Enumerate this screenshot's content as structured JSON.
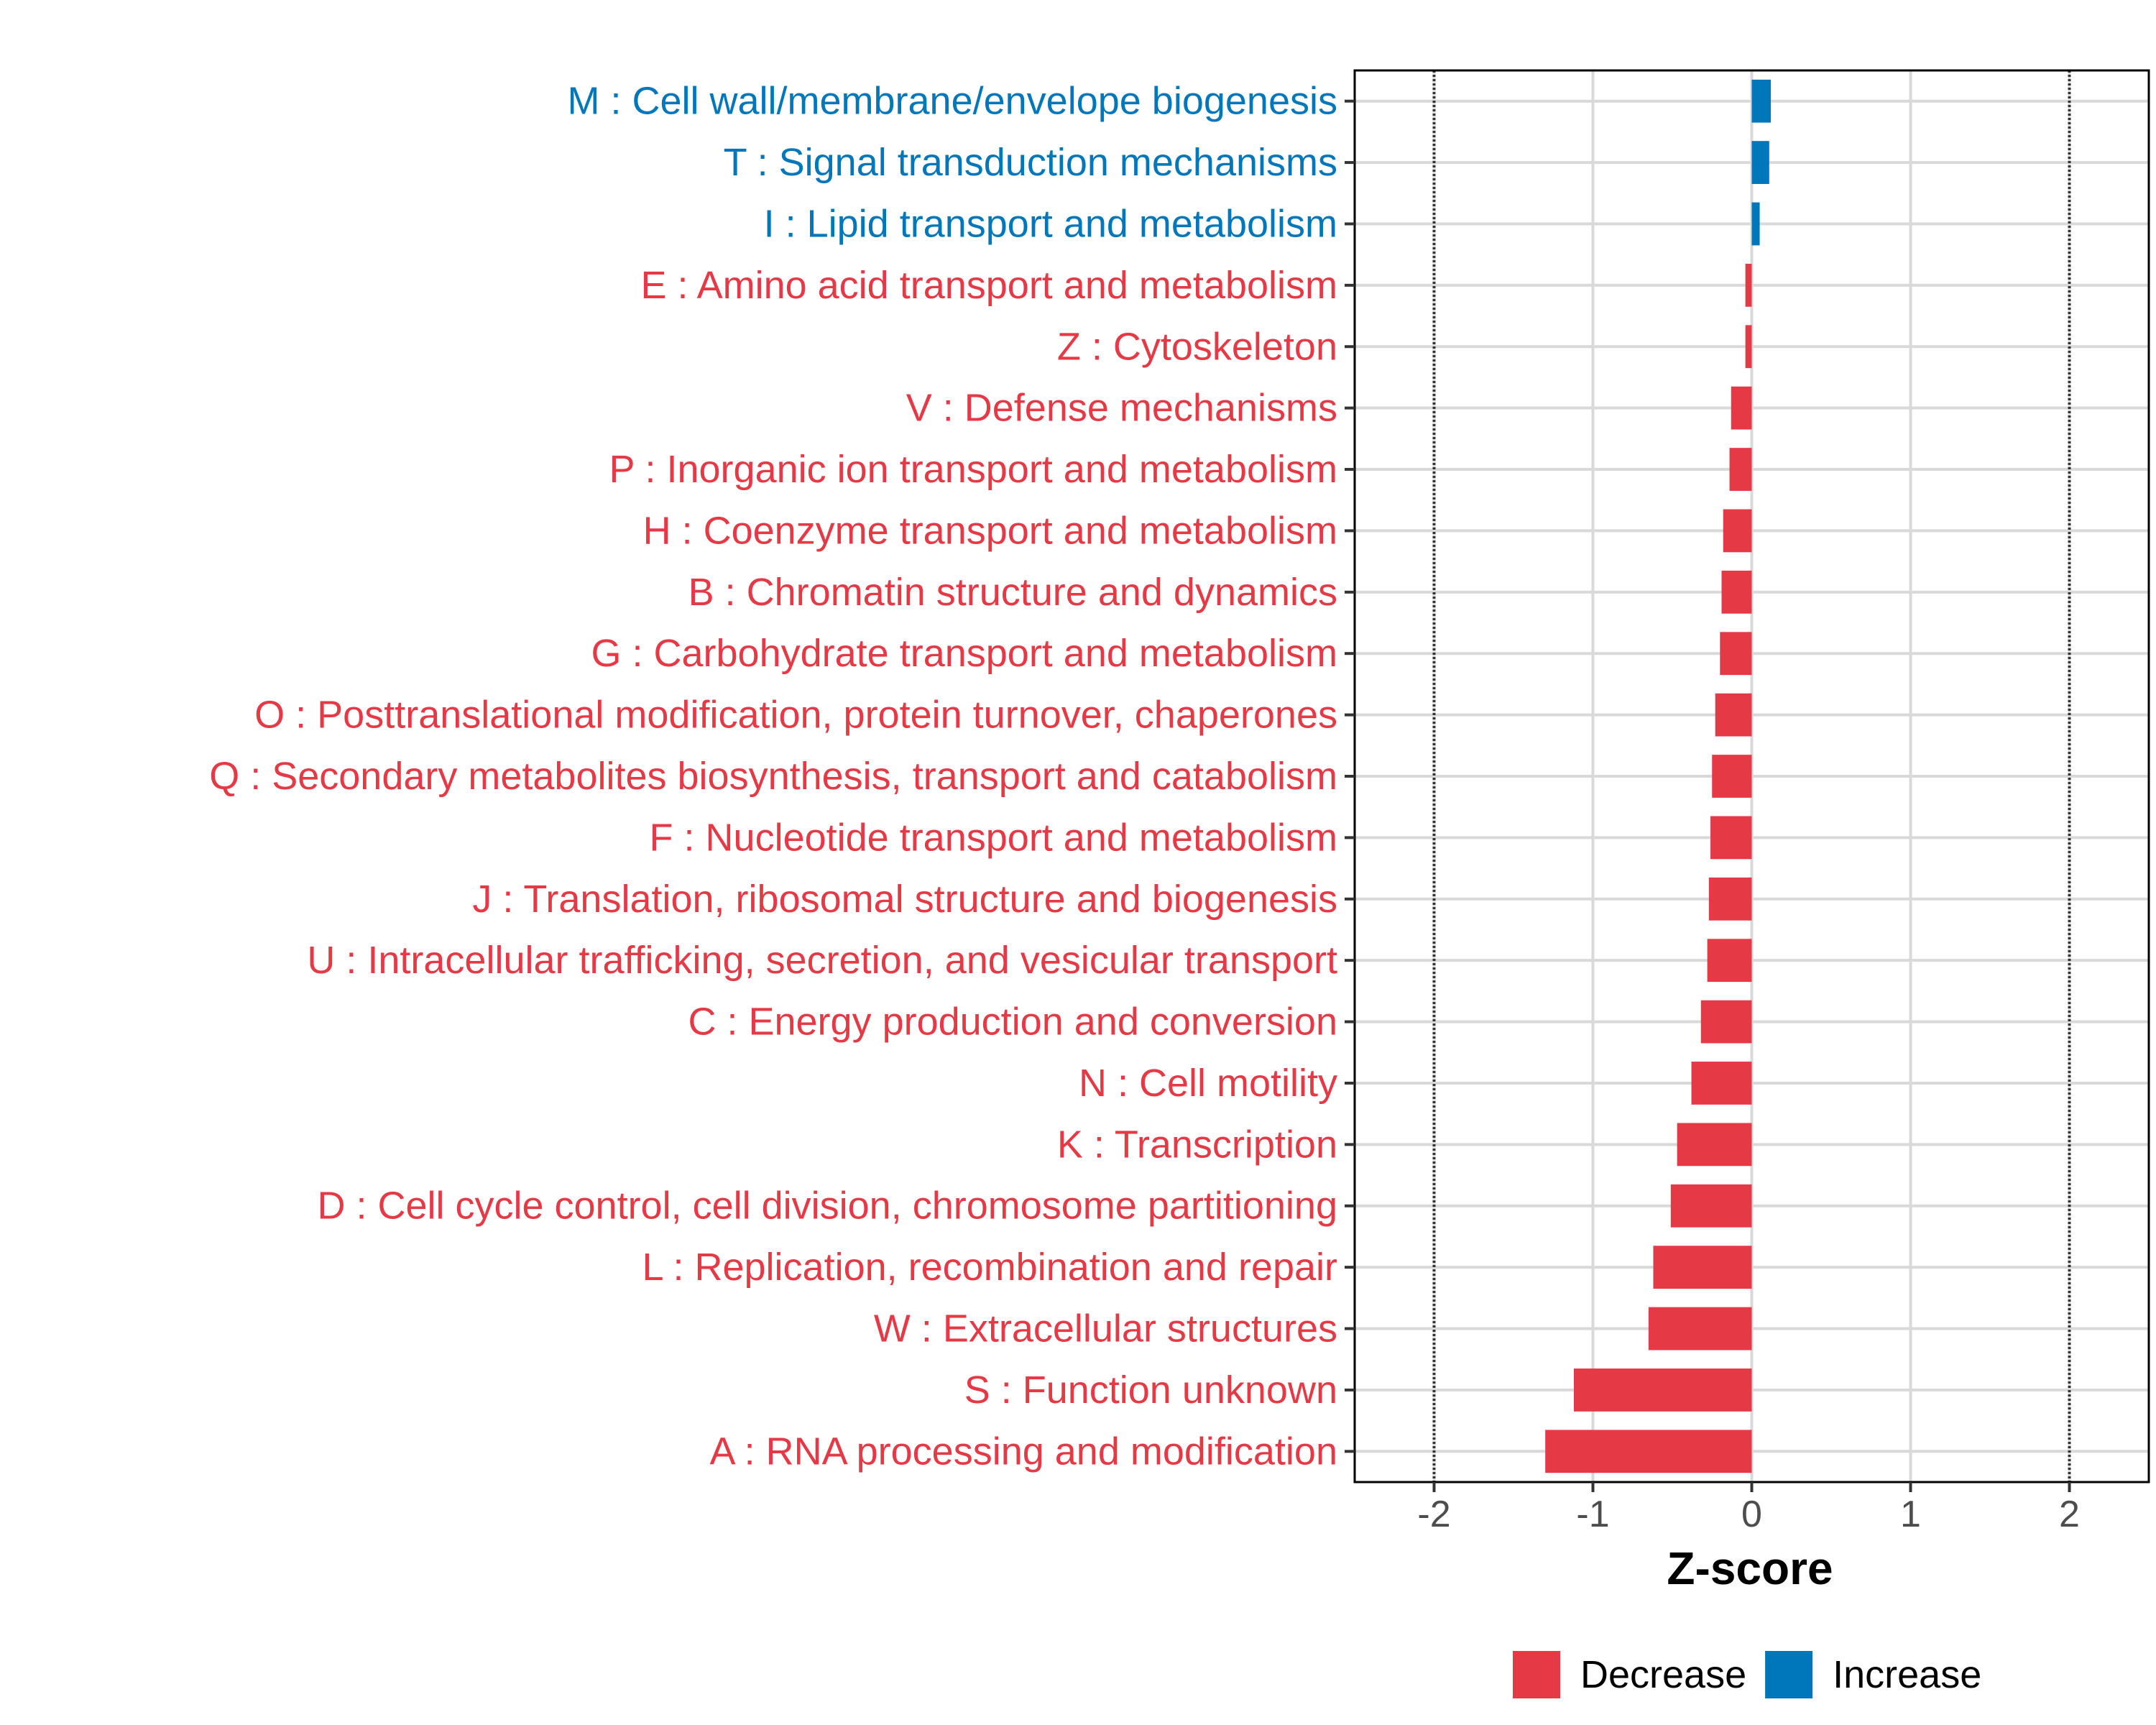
{
  "chart_data": {
    "type": "bar",
    "orientation": "horizontal",
    "title": "",
    "xlabel": "Z-score",
    "ylabel": "",
    "xlim": [
      -2.5,
      2.5
    ],
    "xticks": [
      -2,
      -1,
      0,
      1,
      2
    ],
    "xtick_labels": [
      "-2",
      "-1",
      "0",
      "1",
      "2"
    ],
    "reference_lines": [
      -2,
      2
    ],
    "grid": true,
    "categories": [
      "M : Cell wall/membrane/envelope biogenesis",
      "T : Signal transduction mechanisms",
      "I : Lipid transport and metabolism",
      "E : Amino acid transport and metabolism",
      "Z : Cytoskeleton",
      "V : Defense mechanisms",
      "P : Inorganic ion transport and metabolism",
      "H : Coenzyme transport and metabolism",
      "B : Chromatin structure and dynamics",
      "G : Carbohydrate transport and metabolism",
      "O : Posttranslational modification, protein turnover, chaperones",
      "Q : Secondary metabolites biosynthesis, transport and catabolism",
      "F : Nucleotide transport and metabolism",
      "J : Translation, ribosomal structure and biogenesis",
      "U : Intracellular trafficking, secretion, and vesicular transport",
      "C : Energy production and conversion",
      "N : Cell motility",
      "K : Transcription",
      "D : Cell cycle control, cell division, chromosome partitioning",
      "L : Replication, recombination and repair",
      "W : Extracellular structures",
      "S : Function unknown",
      "A : RNA processing and modification"
    ],
    "values": [
      0.12,
      0.11,
      0.05,
      -0.04,
      -0.04,
      -0.13,
      -0.14,
      -0.18,
      -0.19,
      -0.2,
      -0.23,
      -0.25,
      -0.26,
      -0.27,
      -0.28,
      -0.32,
      -0.38,
      -0.47,
      -0.51,
      -0.62,
      -0.65,
      -1.12,
      -1.3
    ],
    "groups": [
      "Increase",
      "Increase",
      "Increase",
      "Decrease",
      "Decrease",
      "Decrease",
      "Decrease",
      "Decrease",
      "Decrease",
      "Decrease",
      "Decrease",
      "Decrease",
      "Decrease",
      "Decrease",
      "Decrease",
      "Decrease",
      "Decrease",
      "Decrease",
      "Decrease",
      "Decrease",
      "Decrease",
      "Decrease",
      "Decrease"
    ],
    "legend": {
      "position": "bottom",
      "entries": [
        {
          "label": "Decrease",
          "color": "#E63946"
        },
        {
          "label": "Increase",
          "color": "#0077BB"
        }
      ]
    },
    "colors": {
      "Decrease": "#E63946",
      "Increase": "#0077BB"
    }
  }
}
